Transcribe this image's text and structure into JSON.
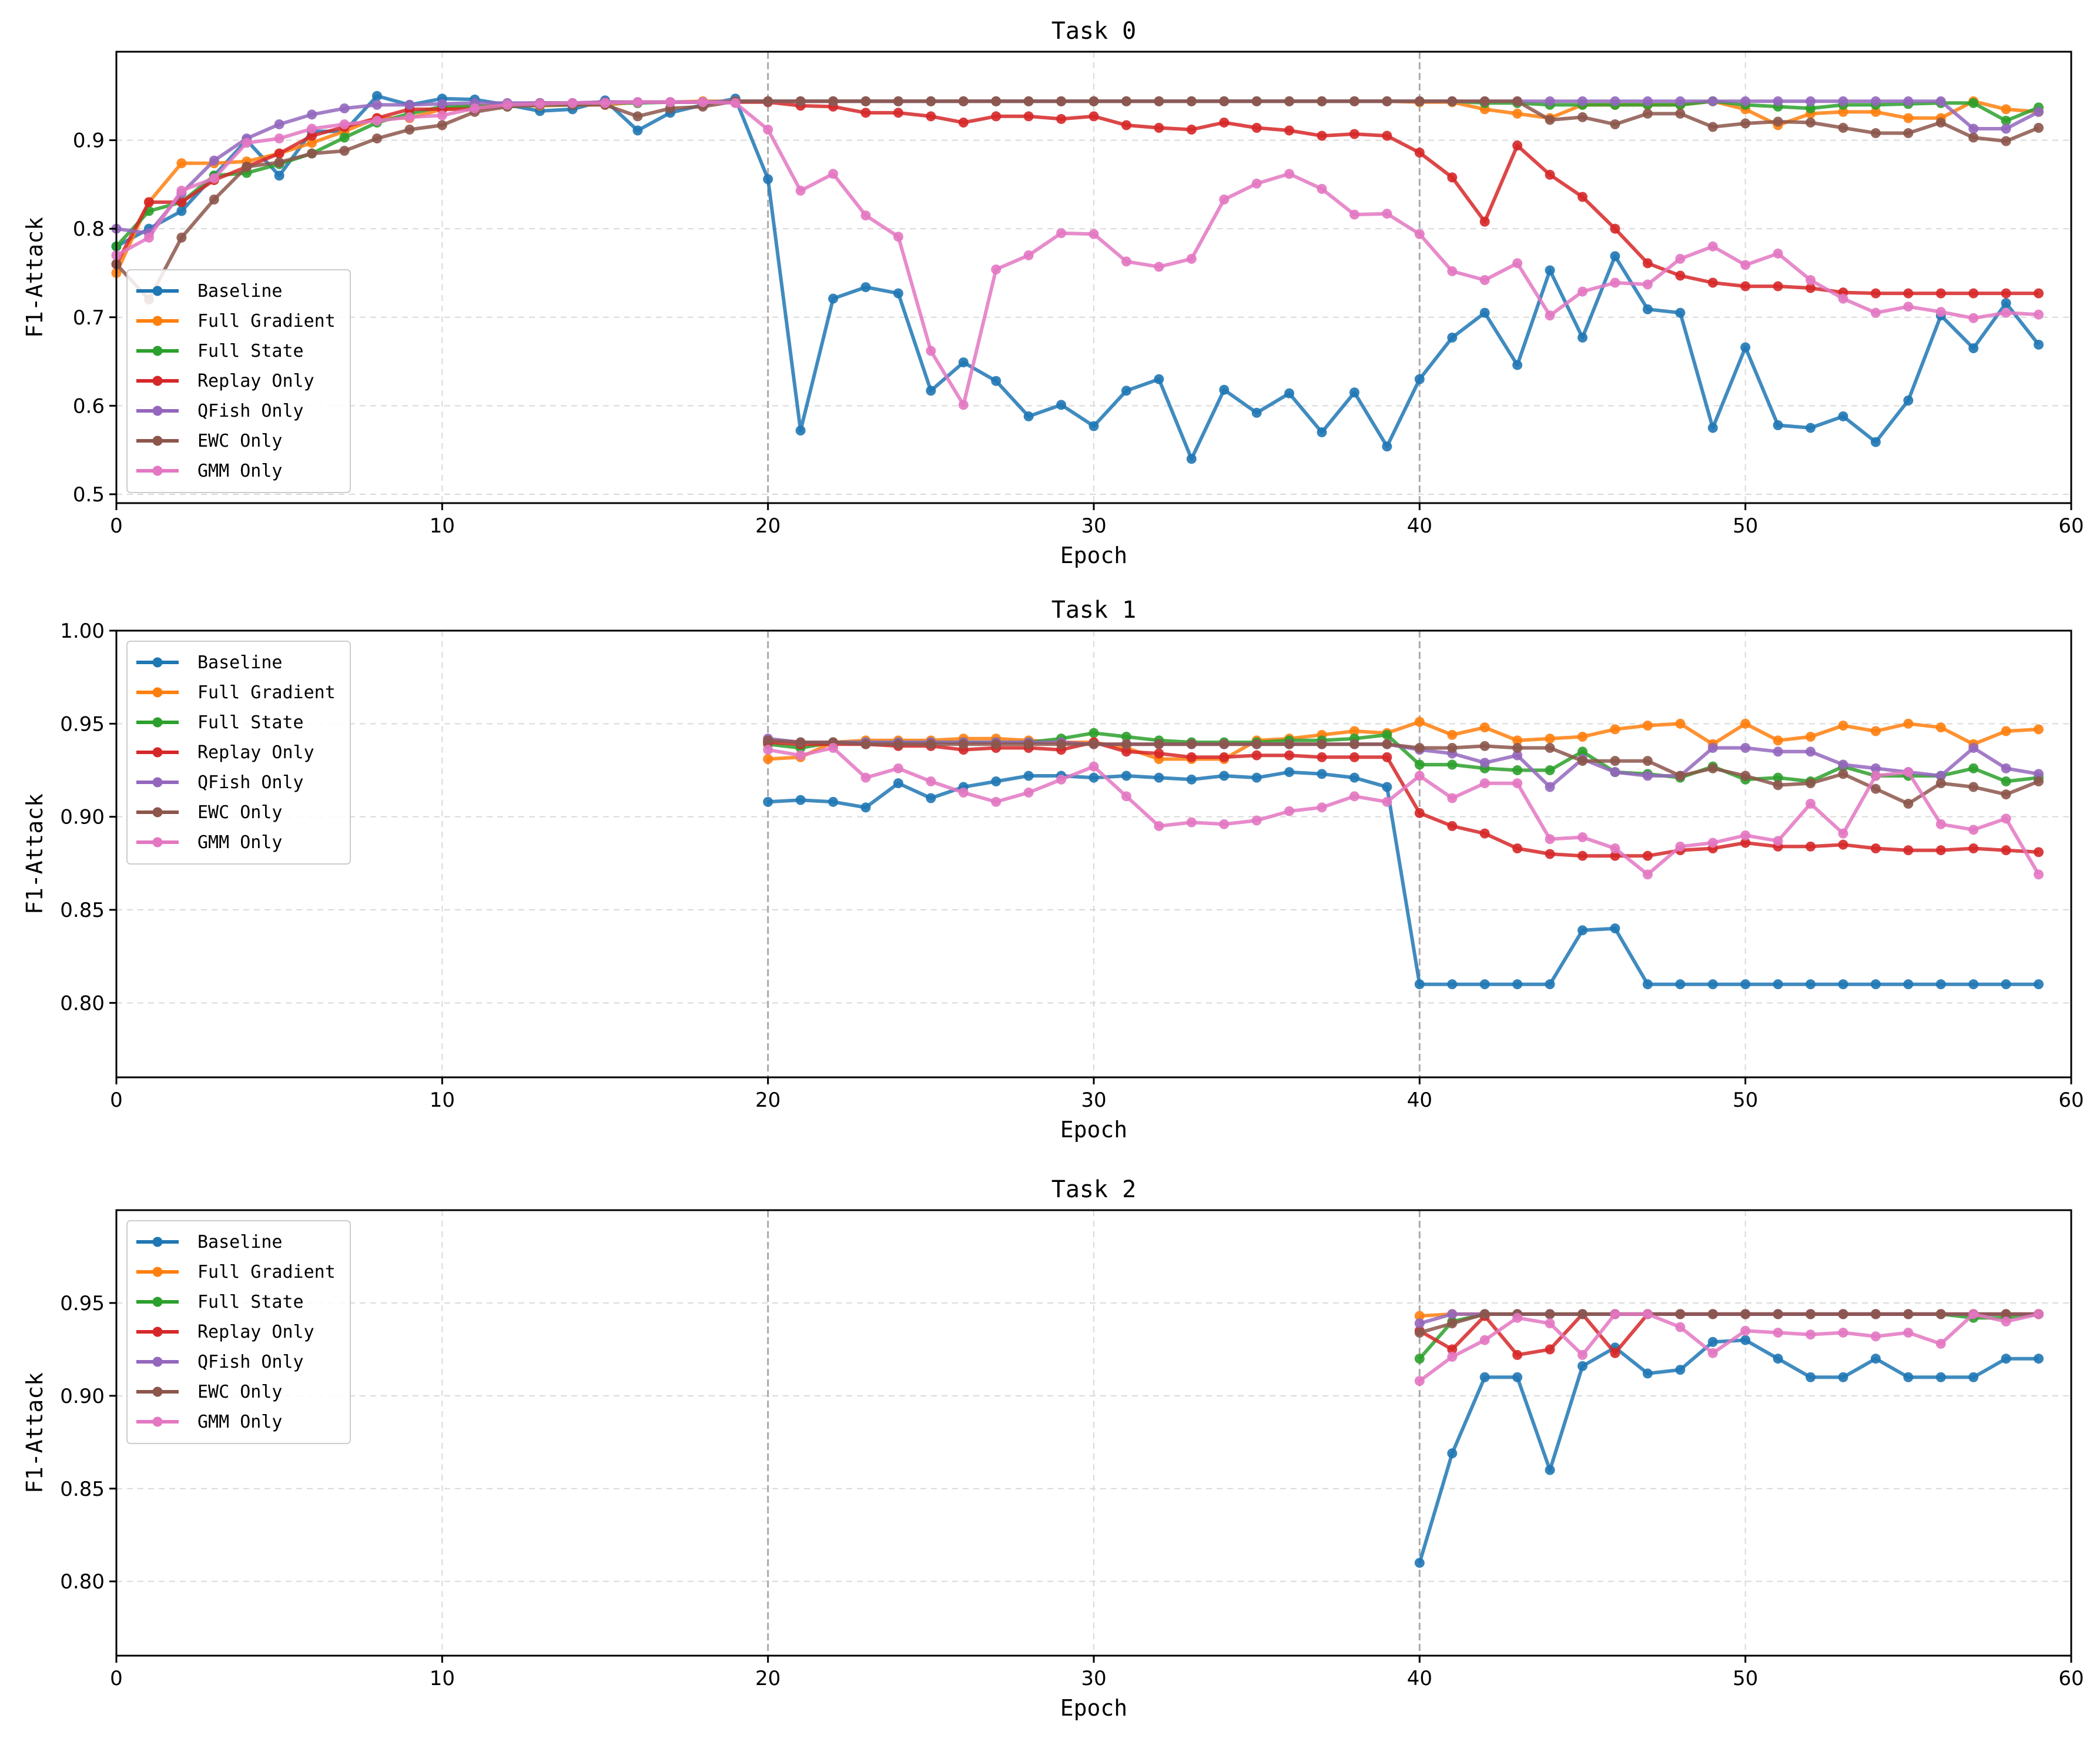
{
  "colors": {
    "Baseline": "#1f77b4",
    "Full Gradient": "#ff7f0e",
    "Full State": "#2ca02c",
    "Replay Only": "#d62728",
    "QFish Only": "#9467bd",
    "EWC Only": "#8c564b",
    "GMM Only": "#e377c2"
  },
  "chart_data": [
    {
      "type": "line",
      "title": "Task 0",
      "xlabel": "Epoch",
      "ylabel": "F1-Attack",
      "xlim": [
        0,
        60
      ],
      "ylim": [
        0.49,
        1.0
      ],
      "xticks": [
        "0",
        "10",
        "20",
        "30",
        "40",
        "50",
        "60"
      ],
      "yticks": [
        "0.5",
        "0.6",
        "0.7",
        "0.8",
        "0.9"
      ],
      "yticks_values": [
        0.5,
        0.6,
        0.7,
        0.8,
        0.9
      ],
      "task_boundaries": [
        20,
        40
      ],
      "legend_position": "lower-left",
      "x_start": 0,
      "series": [
        {
          "name": "Baseline",
          "values": [
            0.78,
            0.8,
            0.82,
            0.86,
            0.9,
            0.86,
            0.91,
            0.91,
            0.95,
            0.94,
            0.947,
            0.946,
            0.94,
            0.933,
            0.935,
            0.945,
            0.911,
            0.931,
            0.94,
            0.947,
            0.856,
            0.572,
            0.721,
            0.734,
            0.727,
            0.617,
            0.649,
            0.628,
            0.588,
            0.601,
            0.577,
            0.617,
            0.63,
            0.54,
            0.618,
            0.592,
            0.614,
            0.57,
            0.615,
            0.554,
            0.63,
            0.677,
            0.705,
            0.646,
            0.753,
            0.677,
            0.769,
            0.709,
            0.705,
            0.575,
            0.666,
            0.578,
            0.575,
            0.588,
            0.559,
            0.606,
            0.702,
            0.665,
            0.716,
            0.669
          ]
        },
        {
          "name": "Full Gradient",
          "values": [
            0.75,
            0.83,
            0.874,
            0.874,
            0.876,
            0.885,
            0.897,
            0.91,
            0.925,
            0.925,
            0.935,
            0.939,
            0.939,
            0.939,
            0.94,
            0.94,
            0.943,
            0.943,
            0.944,
            0.944,
            0.944,
            0.944,
            0.944,
            0.944,
            0.944,
            0.944,
            0.944,
            0.944,
            0.944,
            0.944,
            0.944,
            0.944,
            0.944,
            0.944,
            0.944,
            0.944,
            0.944,
            0.944,
            0.944,
            0.944,
            0.943,
            0.943,
            0.935,
            0.93,
            0.925,
            0.94,
            0.94,
            0.94,
            0.94,
            0.944,
            0.935,
            0.917,
            0.93,
            0.932,
            0.932,
            0.925,
            0.925,
            0.944,
            0.935,
            0.932
          ]
        },
        {
          "name": "Full State",
          "values": [
            0.78,
            0.82,
            0.83,
            0.86,
            0.863,
            0.873,
            0.885,
            0.903,
            0.92,
            0.93,
            0.938,
            0.938,
            0.938,
            0.94,
            0.94,
            0.942,
            0.942,
            0.943,
            0.943,
            0.944,
            0.944,
            0.944,
            0.944,
            0.944,
            0.944,
            0.944,
            0.944,
            0.944,
            0.944,
            0.944,
            0.944,
            0.944,
            0.944,
            0.944,
            0.944,
            0.944,
            0.944,
            0.944,
            0.944,
            0.944,
            0.944,
            0.944,
            0.942,
            0.942,
            0.94,
            0.94,
            0.94,
            0.94,
            0.94,
            0.944,
            0.94,
            0.938,
            0.936,
            0.94,
            0.94,
            0.941,
            0.942,
            0.942,
            0.922,
            0.937
          ]
        },
        {
          "name": "Replay Only",
          "values": [
            0.76,
            0.83,
            0.83,
            0.855,
            0.87,
            0.885,
            0.905,
            0.915,
            0.925,
            0.935,
            0.935,
            0.935,
            0.94,
            0.942,
            0.942,
            0.943,
            0.943,
            0.943,
            0.943,
            0.943,
            0.943,
            0.939,
            0.938,
            0.931,
            0.931,
            0.927,
            0.92,
            0.927,
            0.927,
            0.924,
            0.927,
            0.917,
            0.914,
            0.912,
            0.92,
            0.914,
            0.911,
            0.905,
            0.907,
            0.905,
            0.886,
            0.858,
            0.808,
            0.894,
            0.861,
            0.836,
            0.8,
            0.761,
            0.747,
            0.739,
            0.735,
            0.735,
            0.733,
            0.728,
            0.727,
            0.727,
            0.727,
            0.727,
            0.727,
            0.727
          ]
        },
        {
          "name": "QFish Only",
          "values": [
            0.8,
            0.795,
            0.84,
            0.877,
            0.902,
            0.918,
            0.929,
            0.936,
            0.94,
            0.94,
            0.941,
            0.942,
            0.942,
            0.942,
            0.942,
            0.943,
            0.943,
            0.943,
            0.943,
            0.944,
            0.944,
            0.944,
            0.944,
            0.944,
            0.944,
            0.944,
            0.944,
            0.944,
            0.944,
            0.944,
            0.944,
            0.944,
            0.944,
            0.944,
            0.944,
            0.944,
            0.944,
            0.944,
            0.944,
            0.944,
            0.944,
            0.944,
            0.944,
            0.944,
            0.944,
            0.944,
            0.944,
            0.944,
            0.944,
            0.944,
            0.944,
            0.944,
            0.944,
            0.944,
            0.944,
            0.944,
            0.944,
            0.913,
            0.913,
            0.932
          ]
        },
        {
          "name": "EWC Only",
          "values": [
            0.76,
            0.72,
            0.79,
            0.833,
            0.87,
            0.875,
            0.885,
            0.888,
            0.902,
            0.912,
            0.917,
            0.932,
            0.938,
            0.94,
            0.94,
            0.94,
            0.927,
            0.936,
            0.938,
            0.944,
            0.944,
            0.944,
            0.944,
            0.944,
            0.944,
            0.944,
            0.944,
            0.944,
            0.944,
            0.944,
            0.944,
            0.944,
            0.944,
            0.944,
            0.944,
            0.944,
            0.944,
            0.944,
            0.944,
            0.944,
            0.944,
            0.944,
            0.944,
            0.944,
            0.923,
            0.926,
            0.918,
            0.93,
            0.93,
            0.915,
            0.919,
            0.921,
            0.92,
            0.914,
            0.908,
            0.908,
            0.92,
            0.903,
            0.899,
            0.914
          ]
        },
        {
          "name": "GMM Only",
          "values": [
            0.77,
            0.79,
            0.843,
            0.857,
            0.897,
            0.902,
            0.913,
            0.918,
            0.922,
            0.926,
            0.928,
            0.936,
            0.94,
            0.941,
            0.942,
            0.942,
            0.943,
            0.943,
            0.943,
            0.942,
            0.912,
            0.843,
            0.862,
            0.815,
            0.791,
            0.662,
            0.601,
            0.754,
            0.77,
            0.795,
            0.794,
            0.763,
            0.757,
            0.766,
            0.833,
            0.851,
            0.862,
            0.845,
            0.816,
            0.817,
            0.794,
            0.752,
            0.742,
            0.761,
            0.702,
            0.729,
            0.739,
            0.737,
            0.766,
            0.78,
            0.759,
            0.772,
            0.742,
            0.721,
            0.705,
            0.712,
            0.706,
            0.699,
            0.705,
            0.703
          ]
        }
      ]
    },
    {
      "type": "line",
      "title": "Task 1",
      "xlabel": "Epoch",
      "ylabel": "F1-Attack",
      "xlim": [
        0,
        60
      ],
      "ylim": [
        0.76,
        1.0
      ],
      "xticks": [
        "0",
        "10",
        "20",
        "30",
        "40",
        "50",
        "60"
      ],
      "yticks": [
        "0.80",
        "0.85",
        "0.90",
        "0.95",
        "1.00"
      ],
      "yticks_values": [
        0.8,
        0.85,
        0.9,
        0.95,
        1.0
      ],
      "task_boundaries": [
        20,
        40
      ],
      "legend_position": "upper-left",
      "x_start": 20,
      "series": [
        {
          "name": "Baseline",
          "values": [
            0.908,
            0.909,
            0.908,
            0.905,
            0.918,
            0.91,
            0.916,
            0.919,
            0.922,
            0.922,
            0.921,
            0.922,
            0.921,
            0.92,
            0.922,
            0.921,
            0.924,
            0.923,
            0.921,
            0.916,
            0.81,
            0.81,
            0.81,
            0.81,
            0.81,
            0.839,
            0.84,
            0.81,
            0.81,
            0.81,
            0.81,
            0.81,
            0.81,
            0.81,
            0.81,
            0.81,
            0.81,
            0.81,
            0.81,
            0.81
          ]
        },
        {
          "name": "Full Gradient",
          "values": [
            0.931,
            0.932,
            0.94,
            0.941,
            0.941,
            0.941,
            0.942,
            0.942,
            0.941,
            0.94,
            0.94,
            0.937,
            0.931,
            0.931,
            0.931,
            0.941,
            0.942,
            0.944,
            0.946,
            0.945,
            0.951,
            0.944,
            0.948,
            0.941,
            0.942,
            0.943,
            0.947,
            0.949,
            0.95,
            0.939,
            0.95,
            0.941,
            0.943,
            0.949,
            0.946,
            0.95,
            0.948,
            0.939,
            0.946,
            0.947
          ]
        },
        {
          "name": "Full State",
          "values": [
            0.939,
            0.937,
            0.94,
            0.94,
            0.94,
            0.94,
            0.94,
            0.94,
            0.94,
            0.942,
            0.945,
            0.943,
            0.941,
            0.94,
            0.94,
            0.94,
            0.941,
            0.941,
            0.942,
            0.944,
            0.928,
            0.928,
            0.926,
            0.925,
            0.925,
            0.935,
            0.924,
            0.923,
            0.921,
            0.927,
            0.92,
            0.921,
            0.919,
            0.927,
            0.922,
            0.922,
            0.922,
            0.926,
            0.919,
            0.921
          ]
        },
        {
          "name": "Replay Only",
          "values": [
            0.94,
            0.939,
            0.939,
            0.939,
            0.938,
            0.938,
            0.936,
            0.937,
            0.937,
            0.936,
            0.94,
            0.935,
            0.934,
            0.932,
            0.932,
            0.933,
            0.933,
            0.932,
            0.932,
            0.932,
            0.902,
            0.895,
            0.891,
            0.883,
            0.88,
            0.879,
            0.879,
            0.879,
            0.882,
            0.883,
            0.886,
            0.884,
            0.884,
            0.885,
            0.883,
            0.882,
            0.882,
            0.883,
            0.882,
            0.881
          ]
        },
        {
          "name": "QFish Only",
          "values": [
            0.942,
            0.94,
            0.94,
            0.94,
            0.94,
            0.94,
            0.94,
            0.94,
            0.94,
            0.94,
            0.939,
            0.939,
            0.939,
            0.939,
            0.939,
            0.939,
            0.939,
            0.939,
            0.939,
            0.939,
            0.936,
            0.934,
            0.929,
            0.933,
            0.916,
            0.931,
            0.924,
            0.922,
            0.922,
            0.937,
            0.937,
            0.935,
            0.935,
            0.928,
            0.926,
            0.924,
            0.922,
            0.937,
            0.926,
            0.923
          ]
        },
        {
          "name": "EWC Only",
          "values": [
            0.941,
            0.94,
            0.94,
            0.939,
            0.939,
            0.939,
            0.939,
            0.939,
            0.939,
            0.939,
            0.939,
            0.939,
            0.939,
            0.939,
            0.939,
            0.939,
            0.939,
            0.939,
            0.939,
            0.939,
            0.937,
            0.937,
            0.938,
            0.937,
            0.937,
            0.93,
            0.93,
            0.93,
            0.922,
            0.926,
            0.922,
            0.917,
            0.918,
            0.923,
            0.915,
            0.907,
            0.918,
            0.916,
            0.912,
            0.919
          ]
        },
        {
          "name": "GMM Only",
          "values": [
            0.936,
            0.933,
            0.937,
            0.921,
            0.926,
            0.919,
            0.913,
            0.908,
            0.913,
            0.92,
            0.927,
            0.911,
            0.895,
            0.897,
            0.896,
            0.898,
            0.903,
            0.905,
            0.911,
            0.908,
            0.922,
            0.91,
            0.918,
            0.918,
            0.888,
            0.889,
            0.883,
            0.869,
            0.884,
            0.886,
            0.89,
            0.887,
            0.907,
            0.891,
            0.922,
            0.924,
            0.896,
            0.893,
            0.899,
            0.869
          ]
        }
      ]
    },
    {
      "type": "line",
      "title": "Task 2",
      "xlabel": "Epoch",
      "ylabel": "F1-Attack",
      "xlim": [
        0,
        60
      ],
      "ylim": [
        0.76,
        1.0
      ],
      "xticks": [
        "0",
        "10",
        "20",
        "30",
        "40",
        "50",
        "60"
      ],
      "yticks": [
        "0.80",
        "0.85",
        "0.90",
        "0.95"
      ],
      "yticks_values": [
        0.8,
        0.85,
        0.9,
        0.95
      ],
      "task_boundaries": [
        20,
        40
      ],
      "legend_position": "upper-left",
      "x_start": 40,
      "series": [
        {
          "name": "Baseline",
          "values": [
            0.81,
            0.869,
            0.91,
            0.91,
            0.86,
            0.916,
            0.926,
            0.912,
            0.914,
            0.929,
            0.93,
            0.92,
            0.91,
            0.91,
            0.92,
            0.91,
            0.91,
            0.91,
            0.92,
            0.92
          ]
        },
        {
          "name": "Full Gradient",
          "values": [
            0.943,
            0.944,
            0.944,
            0.944,
            0.944,
            0.944,
            0.944,
            0.944,
            0.944,
            0.944,
            0.944,
            0.944,
            0.944,
            0.944,
            0.944,
            0.944,
            0.944,
            0.944,
            0.944,
            0.944
          ]
        },
        {
          "name": "Full State",
          "values": [
            0.92,
            0.94,
            0.944,
            0.944,
            0.944,
            0.944,
            0.944,
            0.944,
            0.944,
            0.944,
            0.944,
            0.944,
            0.944,
            0.944,
            0.944,
            0.944,
            0.944,
            0.942,
            0.942,
            0.944
          ]
        },
        {
          "name": "Replay Only",
          "values": [
            0.935,
            0.925,
            0.943,
            0.922,
            0.925,
            0.944,
            0.923,
            0.944,
            0.944,
            0.944,
            0.944,
            0.944,
            0.944,
            0.944,
            0.944,
            0.944,
            0.944,
            0.944,
            0.944,
            0.944
          ]
        },
        {
          "name": "QFish Only",
          "values": [
            0.939,
            0.944,
            0.944,
            0.944,
            0.944,
            0.944,
            0.944,
            0.944,
            0.944,
            0.944,
            0.944,
            0.944,
            0.944,
            0.944,
            0.944,
            0.944,
            0.944,
            0.944,
            0.944,
            0.944
          ]
        },
        {
          "name": "EWC Only",
          "values": [
            0.934,
            0.939,
            0.944,
            0.944,
            0.944,
            0.944,
            0.944,
            0.944,
            0.944,
            0.944,
            0.944,
            0.944,
            0.944,
            0.944,
            0.944,
            0.944,
            0.944,
            0.944,
            0.944,
            0.944
          ]
        },
        {
          "name": "GMM Only",
          "values": [
            0.908,
            0.921,
            0.93,
            0.942,
            0.939,
            0.922,
            0.944,
            0.944,
            0.937,
            0.923,
            0.935,
            0.934,
            0.933,
            0.934,
            0.932,
            0.934,
            0.928,
            0.944,
            0.94,
            0.944
          ]
        }
      ]
    }
  ]
}
